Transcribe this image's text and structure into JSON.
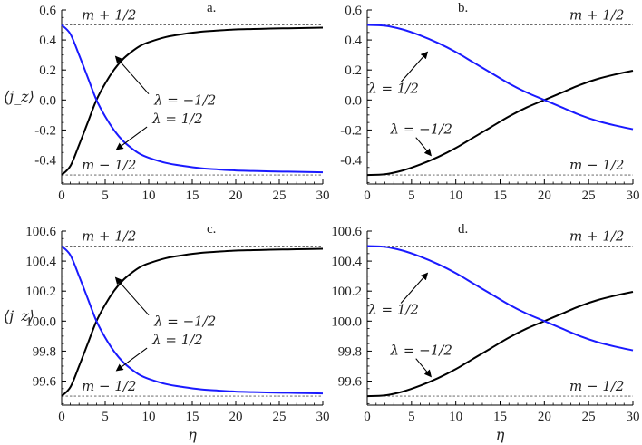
{
  "figure": {
    "ylabel_top": "⟨j_z⟩",
    "ylabel_bottom": "⟨j_z⟩",
    "xlabel": "η",
    "arrow_color": "#000000"
  },
  "chart_data": [
    {
      "type": "line",
      "panel_label": "a.",
      "xlim": [
        0,
        30
      ],
      "ylim": [
        -0.56,
        0.6
      ],
      "x_ticks": [
        0,
        5,
        10,
        15,
        20,
        25,
        30
      ],
      "y_ticks": [
        -0.4,
        -0.2,
        0.0,
        0.2,
        0.4,
        0.6
      ],
      "y_tick_labels": [
        "-0.4",
        "-0.2",
        "0.0",
        "0.2",
        "0.4",
        "0.6"
      ],
      "x_tick_labels": [
        "0",
        "5",
        "10",
        "15",
        "20",
        "25",
        "30"
      ],
      "ylabel": "⟨j_z⟩",
      "xlabel": "",
      "hlines": [
        {
          "y": 0.5,
          "label": "m + 1/2"
        },
        {
          "y": -0.5,
          "label": "m − 1/2"
        }
      ],
      "annotations": [
        {
          "text": "λ = −1/2",
          "arrow_from": [
            10.0,
            0.04
          ],
          "arrow_to": [
            6.2,
            0.29
          ]
        },
        {
          "text": "λ = 1/2",
          "arrow_from": [
            9.8,
            -0.18
          ],
          "arrow_to": [
            6.3,
            -0.33
          ]
        }
      ],
      "series": [
        {
          "color": "#000000",
          "x": [
            0,
            1,
            2,
            3,
            4,
            5,
            6,
            7,
            8,
            9,
            10,
            12,
            14,
            16,
            18,
            20,
            22,
            24,
            26,
            28,
            30
          ],
          "y": [
            -0.5,
            -0.44,
            -0.3,
            -0.15,
            0.0,
            0.11,
            0.2,
            0.27,
            0.32,
            0.36,
            0.385,
            0.42,
            0.44,
            0.455,
            0.463,
            0.47,
            0.473,
            0.476,
            0.478,
            0.48,
            0.482
          ]
        },
        {
          "color": "#1a1aff",
          "x": [
            0,
            1,
            2,
            3,
            4,
            5,
            6,
            7,
            8,
            9,
            10,
            12,
            14,
            16,
            18,
            20,
            22,
            24,
            26,
            28,
            30
          ],
          "y": [
            0.5,
            0.44,
            0.3,
            0.15,
            0.0,
            -0.11,
            -0.2,
            -0.27,
            -0.32,
            -0.36,
            -0.385,
            -0.42,
            -0.44,
            -0.455,
            -0.463,
            -0.47,
            -0.473,
            -0.476,
            -0.478,
            -0.48,
            -0.482
          ]
        }
      ]
    },
    {
      "type": "line",
      "panel_label": "b.",
      "xlim": [
        0,
        30
      ],
      "ylim": [
        -0.56,
        0.6
      ],
      "x_ticks": [
        0,
        5,
        10,
        15,
        20,
        25,
        30
      ],
      "y_ticks": [
        -0.4,
        -0.2,
        0.0,
        0.2,
        0.4,
        0.6
      ],
      "y_tick_labels": [
        "-0.4",
        "-0.2",
        "0.0",
        "0.2",
        "0.4",
        "0.6"
      ],
      "x_tick_labels": [
        "0",
        "5",
        "10",
        "15",
        "20",
        "25",
        "30"
      ],
      "ylabel": "",
      "xlabel": "",
      "hlines": [
        {
          "y": 0.5,
          "label": "m + 1/2"
        },
        {
          "y": -0.5,
          "label": "m − 1/2"
        }
      ],
      "annotations": [
        {
          "text": "λ = 1/2",
          "arrow_from": [
            3.8,
            0.12
          ],
          "arrow_to": [
            6.8,
            0.32
          ]
        },
        {
          "text": "λ = −1/2",
          "arrow_from": [
            5.5,
            -0.25
          ],
          "arrow_to": [
            7.2,
            -0.37
          ]
        }
      ],
      "series": [
        {
          "color": "#000000",
          "x": [
            0,
            2,
            4,
            6,
            8,
            10,
            12,
            14,
            16,
            18,
            20,
            22,
            24,
            26,
            28,
            30
          ],
          "y": [
            -0.5,
            -0.495,
            -0.47,
            -0.43,
            -0.38,
            -0.32,
            -0.25,
            -0.18,
            -0.11,
            -0.05,
            0.0,
            0.05,
            0.1,
            0.14,
            0.17,
            0.195
          ]
        },
        {
          "color": "#1a1aff",
          "x": [
            0,
            2,
            4,
            6,
            8,
            10,
            12,
            14,
            16,
            18,
            20,
            22,
            24,
            26,
            28,
            30
          ],
          "y": [
            0.5,
            0.495,
            0.47,
            0.43,
            0.38,
            0.32,
            0.25,
            0.18,
            0.11,
            0.05,
            0.0,
            -0.05,
            -0.1,
            -0.14,
            -0.17,
            -0.195
          ]
        }
      ]
    },
    {
      "type": "line",
      "panel_label": "c.",
      "xlim": [
        0,
        30
      ],
      "ylim": [
        99.44,
        100.6
      ],
      "x_ticks": [
        0,
        5,
        10,
        15,
        20,
        25,
        30
      ],
      "y_ticks": [
        99.6,
        99.8,
        100.0,
        100.2,
        100.4,
        100.6
      ],
      "y_tick_labels": [
        "99.6",
        "99.8",
        "100.0",
        "100.2",
        "100.4",
        "100.6"
      ],
      "x_tick_labels": [
        "0",
        "5",
        "10",
        "15",
        "20",
        "25",
        "30"
      ],
      "ylabel": "⟨j_z⟩",
      "xlabel": "η",
      "hlines": [
        {
          "y": 100.5,
          "label": "m + 1/2"
        },
        {
          "y": 99.5,
          "label": "m − 1/2"
        }
      ],
      "annotations": [
        {
          "text": "λ = −1/2",
          "arrow_from": [
            10.0,
            100.04
          ],
          "arrow_to": [
            6.2,
            100.29
          ]
        },
        {
          "text": "λ = 1/2",
          "arrow_from": [
            9.8,
            99.82
          ],
          "arrow_to": [
            6.3,
            99.67
          ]
        }
      ],
      "series": [
        {
          "color": "#000000",
          "x": [
            0,
            1,
            2,
            3,
            4,
            5,
            6,
            7,
            8,
            9,
            10,
            12,
            14,
            16,
            18,
            20,
            22,
            24,
            26,
            28,
            30
          ],
          "y": [
            99.5,
            99.56,
            99.7,
            99.85,
            100.0,
            100.11,
            100.2,
            100.27,
            100.32,
            100.36,
            100.385,
            100.42,
            100.44,
            100.455,
            100.463,
            100.47,
            100.473,
            100.476,
            100.478,
            100.48,
            100.482
          ]
        },
        {
          "color": "#1a1aff",
          "x": [
            0,
            1,
            2,
            3,
            4,
            5,
            6,
            7,
            8,
            9,
            10,
            12,
            14,
            16,
            18,
            20,
            22,
            24,
            26,
            28,
            30
          ],
          "y": [
            100.5,
            100.44,
            100.3,
            100.15,
            100.0,
            99.89,
            99.8,
            99.73,
            99.68,
            99.64,
            99.615,
            99.58,
            99.56,
            99.545,
            99.537,
            99.53,
            99.527,
            99.524,
            99.522,
            99.52,
            99.518
          ]
        }
      ]
    },
    {
      "type": "line",
      "panel_label": "d.",
      "xlim": [
        0,
        30
      ],
      "ylim": [
        99.44,
        100.6
      ],
      "x_ticks": [
        0,
        5,
        10,
        15,
        20,
        25,
        30
      ],
      "y_ticks": [
        99.6,
        99.8,
        100.0,
        100.2,
        100.4,
        100.6
      ],
      "y_tick_labels": [
        "99.6",
        "99.8",
        "100.0",
        "100.2",
        "100.4",
        "100.6"
      ],
      "x_tick_labels": [
        "0",
        "5",
        "10",
        "15",
        "20",
        "25",
        "30"
      ],
      "ylabel": "",
      "xlabel": "η",
      "hlines": [
        {
          "y": 100.5,
          "label": "m + 1/2"
        },
        {
          "y": 99.5,
          "label": "m − 1/2"
        }
      ],
      "annotations": [
        {
          "text": "λ = 1/2",
          "arrow_from": [
            3.8,
            100.12
          ],
          "arrow_to": [
            6.8,
            100.32
          ]
        },
        {
          "text": "λ = −1/2",
          "arrow_from": [
            5.5,
            99.75
          ],
          "arrow_to": [
            7.2,
            99.63
          ]
        }
      ],
      "series": [
        {
          "color": "#000000",
          "x": [
            0,
            2,
            4,
            6,
            8,
            10,
            12,
            14,
            16,
            18,
            20,
            22,
            24,
            26,
            28,
            30
          ],
          "y": [
            99.5,
            99.505,
            99.53,
            99.57,
            99.62,
            99.68,
            99.75,
            99.82,
            99.89,
            99.95,
            100.0,
            100.05,
            100.1,
            100.14,
            100.17,
            100.195
          ]
        },
        {
          "color": "#1a1aff",
          "x": [
            0,
            2,
            4,
            6,
            8,
            10,
            12,
            14,
            16,
            18,
            20,
            22,
            24,
            26,
            28,
            30
          ],
          "y": [
            100.5,
            100.495,
            100.47,
            100.43,
            100.38,
            100.32,
            100.25,
            100.18,
            100.11,
            100.05,
            100.0,
            99.95,
            99.9,
            99.86,
            99.83,
            99.805
          ]
        }
      ]
    }
  ]
}
